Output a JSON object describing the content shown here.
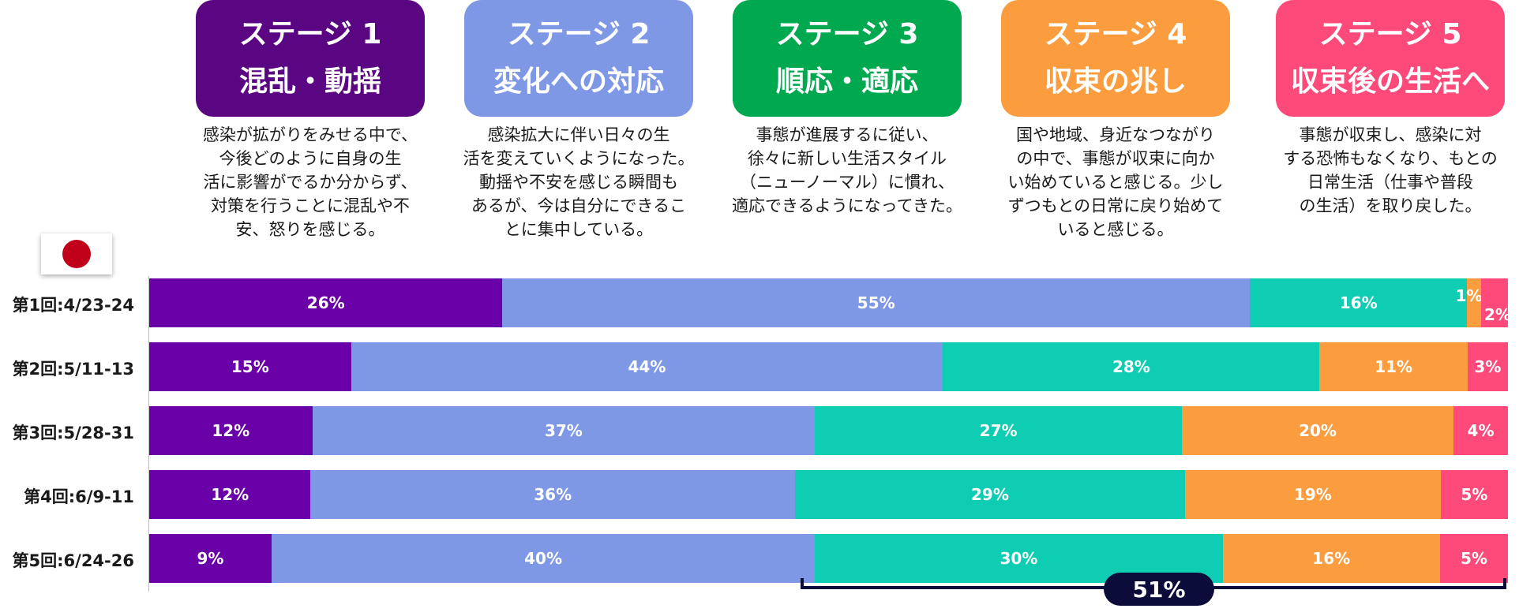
{
  "stages": [
    {
      "label": "ステージ 1",
      "name": "混乱・動揺",
      "color": "#5a0582",
      "desc": [
        "感染が拡がりをみせる中で、",
        "今後どのように自身の生",
        "活に影響がでるか分からず、",
        "対策を行うことに混乱や不",
        "安、怒りを感じる。"
      ]
    },
    {
      "label": "ステージ 2",
      "name": "変化への対応",
      "color": "#7f98e6",
      "desc": [
        "感染拡大に伴い日々の生",
        "活を変えていくようになった。",
        "動揺や不安を感じる瞬間も",
        "あるが、今は自分にできるこ",
        "とに集中している。"
      ]
    },
    {
      "label": "ステージ 3",
      "name": "順応・適応",
      "color": "#00a850",
      "desc": [
        "事態が進展するに従い、",
        "徐々に新しい生活スタイル",
        "（ニューノーマル）に慣れ、",
        "適応できるようになってきた。"
      ]
    },
    {
      "label": "ステージ 4",
      "name": "収束の兆し",
      "color": "#fb9d3f",
      "desc": [
        "国や地域、身近なつながり",
        "の中で、事態が収束に向か",
        "い始めていると感じる。少し",
        "ずつもとの日常に戻り始めて",
        "いると感じる。"
      ]
    },
    {
      "label": "ステージ 5",
      "name": "収束後の生活へ",
      "color": "#fd4a7a",
      "desc": [
        "事態が収束し、感染に対",
        "する恐怖もなくなり、もとの",
        "日常生活（仕事や普段",
        "の生活）を取り戻した。"
      ]
    }
  ],
  "flag": "japan-flag",
  "chart_data": {
    "type": "bar",
    "orientation": "horizontal",
    "stacked": true,
    "percent": true,
    "categories": [
      "第1回:4/23-24",
      "第2回:5/11-13",
      "第3回:5/28-31",
      "第4回:6/9-11",
      "第5回:6/24-26"
    ],
    "series": [
      {
        "name": "ステージ 1",
        "color": "#6a00a8",
        "values": [
          26,
          15,
          12,
          12,
          9
        ]
      },
      {
        "name": "ステージ 2",
        "color": "#7f98e6",
        "values": [
          55,
          44,
          37,
          36,
          40
        ]
      },
      {
        "name": "ステージ 3",
        "color": "#0fcdb3",
        "values": [
          16,
          28,
          27,
          29,
          30
        ]
      },
      {
        "name": "ステージ 4",
        "color": "#fb9d3f",
        "values": [
          1,
          11,
          20,
          19,
          16
        ]
      },
      {
        "name": "ステージ 5",
        "color": "#fd4a7a",
        "values": [
          2,
          3,
          4,
          5,
          5
        ]
      }
    ],
    "value_labels": [
      [
        "26%",
        "55%",
        "16%",
        "1%",
        "2%"
      ],
      [
        "15%",
        "44%",
        "28%",
        "11%",
        "3%"
      ],
      [
        "12%",
        "37%",
        "27%",
        "20%",
        "4%"
      ],
      [
        "12%",
        "36%",
        "29%",
        "19%",
        "5%"
      ],
      [
        "9%",
        "40%",
        "30%",
        "16%",
        "5%"
      ]
    ],
    "annotation": "51%"
  }
}
